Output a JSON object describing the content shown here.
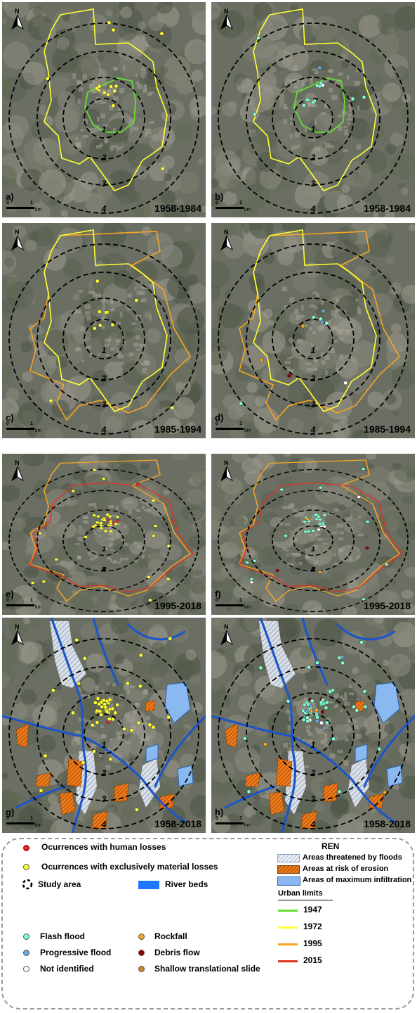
{
  "panels": [
    {
      "label": "a)",
      "period": "1958-1984"
    },
    {
      "label": "b)",
      "period": "1958-1984"
    },
    {
      "label": "c)",
      "period": "1985-1994"
    },
    {
      "label": "d)",
      "period": "1985-1994"
    },
    {
      "label": "e)",
      "period": "1995-2018"
    },
    {
      "label": "f)",
      "period": "1995-2018"
    },
    {
      "label": "g)",
      "period": "1958-2018"
    },
    {
      "label": "h)",
      "period": "1958-2018"
    }
  ],
  "ring_labels": [
    "1",
    "2",
    "3",
    "4"
  ],
  "north_label": "N",
  "scale": {
    "zero": "0",
    "one": "1",
    "unit": "km"
  },
  "legend": {
    "human_losses": "Ocurrences with human losses",
    "material_losses": "Ocurrences with exclusively material losses",
    "study_area": "Study area",
    "river_beds": "River beds",
    "flash_flood": "Flash flood",
    "progressive_flood": "Progressive flood",
    "not_identified": "Not identified",
    "rockfall": "Rockfall",
    "debris_flow": "Debris flow",
    "shallow_slide": "Shallow translational slide",
    "ren_title": "REN",
    "ren_floods": "Areas threatened by floods",
    "ren_erosion": "Areas at risk of erosion",
    "ren_infiltration": "Areas of maximum infiltration",
    "urban_limits": "Urban limits",
    "y1947": "1947",
    "y1972": "1972",
    "y1995": "1995",
    "y2015": "2015"
  },
  "colors": {
    "human": "#e8262a",
    "material": "#ffff33",
    "flash": "#7fffd4",
    "progressive": "#6fa8dc",
    "notid": "#ffffff",
    "rockfall": "#f5a623",
    "debris": "#8b0000",
    "shallow": "#c58a2b",
    "limit1947": "#66dd33",
    "limit1972": "#ffff33",
    "limit1995": "#f5a623",
    "limit2015": "#dd3322",
    "river": "#1e56c8",
    "infiltration": "#8ab8f0"
  }
}
